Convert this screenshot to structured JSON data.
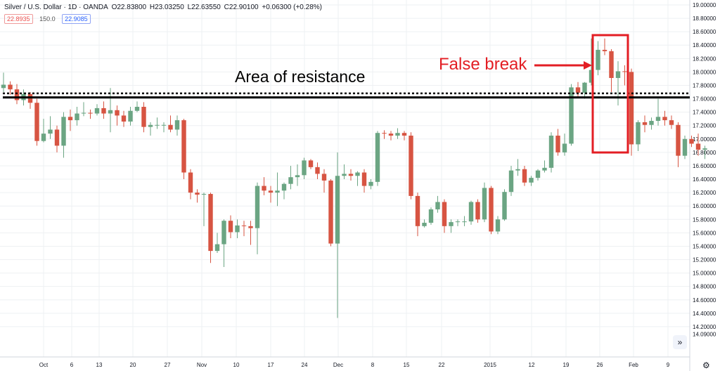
{
  "header": {
    "symbol": "Silver / U.S. Dollar · 1D · OANDA",
    "open": "O22.83800",
    "high": "H23.03250",
    "low": "L22.63550",
    "close": "C22.90100",
    "change": "+0.06300 (+0.28%)",
    "bid": "22.8935",
    "spread": "150.0",
    "ask": "22.9085"
  },
  "icons": {
    "scroll": "double-chevron-right-icon",
    "settings": "gear-icon"
  },
  "colors": {
    "up": "#6ba583",
    "down": "#d75442",
    "annotation": "#e31e24",
    "text": "#131722"
  },
  "chart_data": {
    "type": "candlestick",
    "ylim": [
      14.0,
      19.0
    ],
    "y_ticks": [
      "19.00000",
      "18.80000",
      "18.60000",
      "18.40000",
      "18.20000",
      "18.00000",
      "17.80000",
      "17.60000",
      "17.40000",
      "17.20000",
      "17.00000",
      "16.80000",
      "16.60000",
      "16.40000",
      "16.20000",
      "16.00000",
      "15.80000",
      "15.60000",
      "15.40000",
      "15.20000",
      "15.00000",
      "14.80000",
      "14.60000",
      "14.40000",
      "14.20000",
      "14.09000"
    ],
    "x_ticks": [
      "Oct",
      "6",
      "13",
      "20",
      "27",
      "Nov",
      "10",
      "17",
      "24",
      "Dec",
      "8",
      "15",
      "22",
      "2015",
      "12",
      "19",
      "26",
      "Feb",
      "9"
    ],
    "annotations": {
      "resistance_label": "Area of resistance",
      "false_break_label": "False break"
    },
    "levels": {
      "resistance_solid": 17.62,
      "resistance_dotted": 17.68
    },
    "candles": [
      [
        17.76,
        17.81,
        17.99,
        17.7
      ],
      [
        17.81,
        17.74,
        17.86,
        17.66
      ],
      [
        17.74,
        17.58,
        17.82,
        17.52
      ],
      [
        17.58,
        17.67,
        17.74,
        17.5
      ],
      [
        17.67,
        17.54,
        17.7,
        17.45
      ],
      [
        17.54,
        16.97,
        17.6,
        16.9
      ],
      [
        16.97,
        17.08,
        17.3,
        16.95
      ],
      [
        17.08,
        17.14,
        17.34,
        17.0
      ],
      [
        17.14,
        16.9,
        17.2,
        16.8
      ],
      [
        16.9,
        17.33,
        17.4,
        16.72
      ],
      [
        17.33,
        17.28,
        17.44,
        17.12
      ],
      [
        17.28,
        17.38,
        17.48,
        17.2
      ],
      [
        17.38,
        17.39,
        17.55,
        17.34
      ],
      [
        17.39,
        17.38,
        17.44,
        17.3
      ],
      [
        17.38,
        17.46,
        17.52,
        17.35
      ],
      [
        17.46,
        17.38,
        17.56,
        17.3
      ],
      [
        17.38,
        17.43,
        17.76,
        17.1
      ],
      [
        17.43,
        17.35,
        17.5,
        17.2
      ],
      [
        17.35,
        17.26,
        17.42,
        17.18
      ],
      [
        17.26,
        17.42,
        17.48,
        17.2
      ],
      [
        17.42,
        17.48,
        17.56,
        17.4
      ],
      [
        17.48,
        17.18,
        17.55,
        17.1
      ],
      [
        17.18,
        17.21,
        17.25,
        17.05
      ],
      [
        17.21,
        17.21,
        17.32,
        17.15
      ],
      [
        17.21,
        17.21,
        17.25,
        17.1
      ],
      [
        17.21,
        17.14,
        17.35,
        17.1
      ],
      [
        17.14,
        17.28,
        17.35,
        17.05
      ],
      [
        17.28,
        16.5,
        17.3,
        16.4
      ],
      [
        16.5,
        16.2,
        16.55,
        16.1
      ],
      [
        16.2,
        16.17,
        16.25,
        16.05
      ],
      [
        16.17,
        16.18,
        16.2,
        15.7
      ],
      [
        16.18,
        15.33,
        16.2,
        15.15
      ],
      [
        15.33,
        15.43,
        15.6,
        15.3
      ],
      [
        15.43,
        15.78,
        15.8,
        15.09
      ],
      [
        15.78,
        15.61,
        15.86,
        15.52
      ],
      [
        15.61,
        15.71,
        15.8,
        15.52
      ],
      [
        15.71,
        15.7,
        15.78,
        15.55
      ],
      [
        15.7,
        15.67,
        15.78,
        15.42
      ],
      [
        15.67,
        16.3,
        16.35,
        15.28
      ],
      [
        16.3,
        16.23,
        16.43,
        16.16
      ],
      [
        16.23,
        16.2,
        16.3,
        16.05
      ],
      [
        16.2,
        16.23,
        16.5,
        16.0
      ],
      [
        16.23,
        16.33,
        16.35,
        16.1
      ],
      [
        16.33,
        16.43,
        16.6,
        16.25
      ],
      [
        16.43,
        16.46,
        16.62,
        16.3
      ],
      [
        16.46,
        16.68,
        16.72,
        16.4
      ],
      [
        16.68,
        16.58,
        16.7,
        16.55
      ],
      [
        16.58,
        16.48,
        16.65,
        16.4
      ],
      [
        16.48,
        16.38,
        16.55,
        16.2
      ],
      [
        16.38,
        15.44,
        16.4,
        15.4
      ],
      [
        15.44,
        16.45,
        16.8,
        14.33
      ],
      [
        16.45,
        16.48,
        16.62,
        16.4
      ],
      [
        16.48,
        16.45,
        16.55,
        16.38
      ],
      [
        16.45,
        16.5,
        16.52,
        16.3
      ],
      [
        16.5,
        16.3,
        16.55,
        16.2
      ],
      [
        16.3,
        16.36,
        16.4,
        16.25
      ],
      [
        16.36,
        17.09,
        17.12,
        16.3
      ],
      [
        17.09,
        17.08,
        17.13,
        17.0
      ],
      [
        17.08,
        17.05,
        17.12,
        16.98
      ],
      [
        17.05,
        17.09,
        17.16,
        17.0
      ],
      [
        17.09,
        17.05,
        17.12,
        16.98
      ],
      [
        17.05,
        16.15,
        17.1,
        16.1
      ],
      [
        16.15,
        15.7,
        16.2,
        15.55
      ],
      [
        15.7,
        15.75,
        15.8,
        15.68
      ],
      [
        15.75,
        15.95,
        15.98,
        15.72
      ],
      [
        15.95,
        16.06,
        16.15,
        15.9
      ],
      [
        16.06,
        15.7,
        16.1,
        15.6
      ],
      [
        15.7,
        15.76,
        15.8,
        15.6
      ],
      [
        15.76,
        15.77,
        15.8,
        15.7
      ],
      [
        15.77,
        15.77,
        15.85,
        15.7
      ],
      [
        15.77,
        16.06,
        16.08,
        15.72
      ],
      [
        16.06,
        15.8,
        16.1,
        15.75
      ],
      [
        15.8,
        16.27,
        16.35,
        15.76
      ],
      [
        16.27,
        15.62,
        16.3,
        15.58
      ],
      [
        15.62,
        15.8,
        15.85,
        15.58
      ],
      [
        15.8,
        16.21,
        16.25,
        15.78
      ],
      [
        16.21,
        16.53,
        16.6,
        16.15
      ],
      [
        16.53,
        16.55,
        16.7,
        16.45
      ],
      [
        16.55,
        16.35,
        16.6,
        16.3
      ],
      [
        16.35,
        16.42,
        16.45,
        16.3
      ],
      [
        16.42,
        16.53,
        16.55,
        16.38
      ],
      [
        16.53,
        16.57,
        16.68,
        16.5
      ],
      [
        16.57,
        17.05,
        17.1,
        16.5
      ],
      [
        17.05,
        16.8,
        17.15,
        16.75
      ],
      [
        16.8,
        16.93,
        17.08,
        16.75
      ],
      [
        16.93,
        17.77,
        17.82,
        16.9
      ],
      [
        17.77,
        17.69,
        17.85,
        17.62
      ],
      [
        17.69,
        17.84,
        17.85,
        17.6
      ],
      [
        17.84,
        18.03,
        18.5,
        17.8
      ],
      [
        18.03,
        18.33,
        18.46,
        17.95
      ],
      [
        18.33,
        18.31,
        18.5,
        18.25
      ],
      [
        18.31,
        17.91,
        18.34,
        17.7
      ],
      [
        17.91,
        18.01,
        18.16,
        17.5
      ],
      [
        18.01,
        18.0,
        18.1,
        17.8
      ],
      [
        18.0,
        16.92,
        18.05,
        16.75
      ],
      [
        16.92,
        17.25,
        17.28,
        16.82
      ],
      [
        17.25,
        17.21,
        17.35,
        17.1
      ],
      [
        17.21,
        17.27,
        17.32,
        17.14
      ],
      [
        17.27,
        17.33,
        17.6,
        17.2
      ],
      [
        17.33,
        17.28,
        17.42,
        17.2
      ],
      [
        17.28,
        17.21,
        17.35,
        17.15
      ],
      [
        17.21,
        16.75,
        17.25,
        16.58
      ],
      [
        16.75,
        17.0,
        17.05,
        16.7
      ],
      [
        17.0,
        16.93,
        17.05,
        16.88
      ],
      [
        16.93,
        16.84,
        17.08,
        16.75
      ],
      [
        16.84,
        16.86,
        16.9,
        16.7
      ]
    ]
  }
}
